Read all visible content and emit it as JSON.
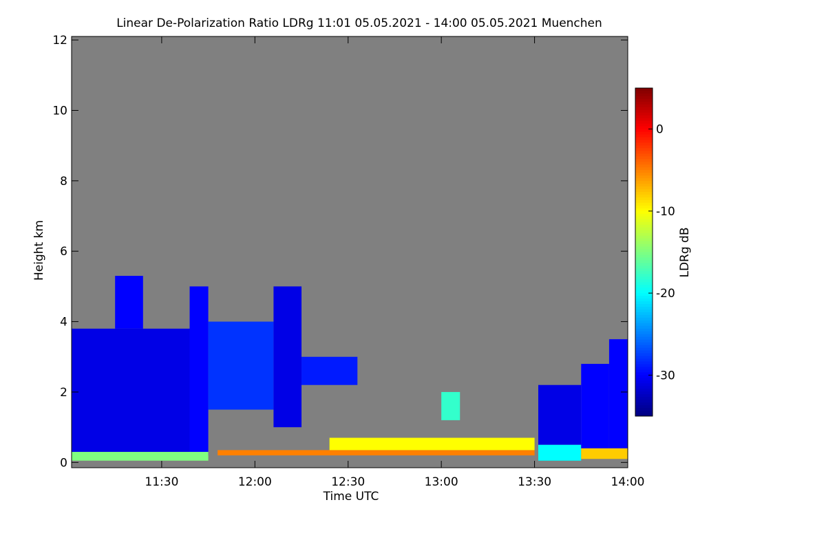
{
  "chart_data": {
    "type": "heatmap",
    "title": "Linear De-Polarization Ratio LDRg   11:01 05.05.2021 - 14:00 05.05.2021 Muenchen",
    "x_label": "Time UTC",
    "y_label": "Height km",
    "colorbar_label": "LDRg dB",
    "xlim": [
      11.0167,
      14.0
    ],
    "xticks": [
      {
        "value": 11.5,
        "label": "11:30"
      },
      {
        "value": 12.0,
        "label": "12:00"
      },
      {
        "value": 12.5,
        "label": "12:30"
      },
      {
        "value": 13.0,
        "label": "13:00"
      },
      {
        "value": 13.5,
        "label": "13:30"
      },
      {
        "value": 14.0,
        "label": "14:00"
      }
    ],
    "ylim": [
      -0.15,
      12.1
    ],
    "yticks": [
      0,
      2,
      4,
      6,
      8,
      10,
      12
    ],
    "clim": [
      -35,
      5
    ],
    "cticks": [
      0,
      -10,
      -20,
      -30
    ],
    "background": "#808080",
    "cells": [
      {
        "x": [
          11.0167,
          11.65
        ],
        "y": [
          0.2,
          3.8
        ],
        "value": -31
      },
      {
        "x": [
          11.25,
          11.4
        ],
        "y": [
          3.8,
          5.3
        ],
        "value": -30
      },
      {
        "x": [
          11.65,
          11.75
        ],
        "y": [
          0.2,
          5.0
        ],
        "value": -30
      },
      {
        "x": [
          11.75,
          12.1
        ],
        "y": [
          1.5,
          4.0
        ],
        "value": -28
      },
      {
        "x": [
          12.1,
          12.25
        ],
        "y": [
          1.0,
          5.0
        ],
        "value": -31
      },
      {
        "x": [
          12.25,
          12.55
        ],
        "y": [
          2.2,
          3.0
        ],
        "value": -29
      },
      {
        "x": [
          11.0167,
          11.75
        ],
        "y": [
          0.05,
          0.3
        ],
        "value": -15
      },
      {
        "x": [
          11.8,
          13.5
        ],
        "y": [
          0.2,
          0.35
        ],
        "value": -5
      },
      {
        "x": [
          12.4,
          13.5
        ],
        "y": [
          0.35,
          0.7
        ],
        "value": -10
      },
      {
        "x": [
          13.0,
          13.1
        ],
        "y": [
          1.2,
          2.0
        ],
        "value": -18
      },
      {
        "x": [
          13.52,
          13.75
        ],
        "y": [
          0.5,
          2.2
        ],
        "value": -31
      },
      {
        "x": [
          13.52,
          13.75
        ],
        "y": [
          0.05,
          0.5
        ],
        "value": -20
      },
      {
        "x": [
          13.75,
          13.9
        ],
        "y": [
          0.4,
          2.8
        ],
        "value": -30
      },
      {
        "x": [
          13.9,
          14.0
        ],
        "y": [
          0.4,
          3.5
        ],
        "value": -30
      },
      {
        "x": [
          13.75,
          14.0
        ],
        "y": [
          0.1,
          0.4
        ],
        "value": -8
      }
    ]
  }
}
